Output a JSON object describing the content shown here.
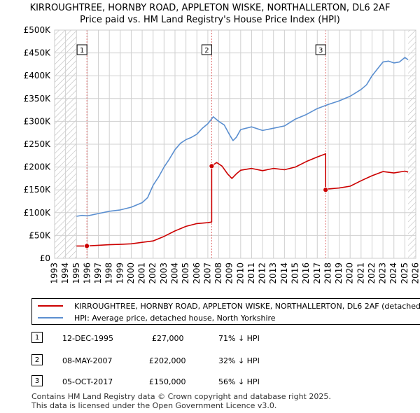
{
  "colors": {
    "red": "#cc0000",
    "blue": "#5b8fd0",
    "grid": "#d0d0d0",
    "hatch": "#bbbbbb",
    "vline": "#e07070"
  },
  "chart_data": {
    "type": "line",
    "title": "KIRROUGHTREE, HORNBY ROAD, APPLETON WISKE, NORTHALLERTON, DL6 2AF",
    "subtitle": "Price paid vs. HM Land Registry's House Price Index (HPI)",
    "xlim": [
      1993,
      2026
    ],
    "ylim": [
      0,
      500000
    ],
    "yticks": [
      0,
      50000,
      100000,
      150000,
      200000,
      250000,
      300000,
      350000,
      400000,
      450000,
      500000
    ],
    "ytick_labels": [
      "£0",
      "£50K",
      "£100K",
      "£150K",
      "£200K",
      "£250K",
      "£300K",
      "£350K",
      "£400K",
      "£450K",
      "£500K"
    ],
    "xtick_labels": [
      "1993",
      "1994",
      "1995",
      "1996",
      "1997",
      "1998",
      "1999",
      "2000",
      "2001",
      "2002",
      "2003",
      "2004",
      "2005",
      "2006",
      "2007",
      "2008",
      "2009",
      "2010",
      "2011",
      "2012",
      "2013",
      "2014",
      "2015",
      "2016",
      "2017",
      "2018",
      "2019",
      "2020",
      "2021",
      "2022",
      "2023",
      "2024",
      "2025",
      "2026"
    ],
    "hatched_ranges": [
      [
        1993,
        1995
      ],
      [
        2025.3,
        2026
      ]
    ],
    "series": [
      {
        "name": "KIRROUGHTREE, HORNBY ROAD, APPLETON WISKE, NORTHALLERTON, DL6 2AF (detached house)",
        "color": "#cc0000",
        "x": [
          1995.0,
          1995.95,
          1997,
          1998,
          1999,
          2000,
          2001,
          2002,
          2003,
          2004,
          2005,
          2006,
          2007.0,
          2007.35,
          2007.35,
          2007.8,
          2008.3,
          2008.8,
          2009.2,
          2009.6,
          2010,
          2011,
          2012,
          2013,
          2014,
          2015,
          2016,
          2017,
          2017.76,
          2017.76,
          2018,
          2019,
          2020,
          2021,
          2022,
          2023,
          2024,
          2025,
          2025.3
        ],
        "values": [
          27000,
          27000,
          28500,
          29800,
          30500,
          31800,
          35000,
          38000,
          48000,
          60000,
          70000,
          76000,
          78000,
          79500,
          202000,
          210000,
          202000,
          185000,
          175000,
          185000,
          193000,
          197000,
          192000,
          197000,
          194000,
          200000,
          212000,
          222000,
          229000,
          150000,
          152000,
          154000,
          158000,
          170000,
          181000,
          190000,
          187000,
          191000,
          189000
        ]
      },
      {
        "name": "HPI: Average price, detached house, North Yorkshire",
        "color": "#5b8fd0",
        "x": [
          1995.0,
          1995.5,
          1996,
          1997,
          1998,
          1999,
          2000,
          2001,
          2001.5,
          2002,
          2002.5,
          2003,
          2003.5,
          2004,
          2004.5,
          2005,
          2005.5,
          2006,
          2006.5,
          2007,
          2007.5,
          2008,
          2008.5,
          2009,
          2009.3,
          2009.6,
          2010,
          2011,
          2012,
          2013,
          2014,
          2015,
          2016,
          2017,
          2018,
          2019,
          2020,
          2021,
          2021.5,
          2022,
          2022.5,
          2023,
          2023.5,
          2024,
          2024.5,
          2025,
          2025.3
        ],
        "values": [
          92000,
          94000,
          93000,
          98000,
          103000,
          106000,
          112000,
          122000,
          133000,
          160000,
          178000,
          200000,
          218000,
          238000,
          252000,
          260000,
          265000,
          272000,
          285000,
          295000,
          310000,
          300000,
          292000,
          270000,
          258000,
          265000,
          282000,
          288000,
          280000,
          285000,
          290000,
          305000,
          315000,
          328000,
          337000,
          345000,
          355000,
          370000,
          380000,
          400000,
          415000,
          430000,
          432000,
          428000,
          430000,
          440000,
          435000
        ]
      }
    ],
    "sales": [
      {
        "id": "1",
        "x": 1995.95,
        "value": 27000
      },
      {
        "id": "2",
        "x": 2007.35,
        "value": 202000
      },
      {
        "id": "3",
        "x": 2017.76,
        "value": 150000
      }
    ]
  },
  "legend": {
    "red_label": "KIRROUGHTREE, HORNBY ROAD, APPLETON WISKE, NORTHALLERTON, DL6 2AF (detached house)",
    "blue_label": "HPI: Average price, detached house, North Yorkshire"
  },
  "sales_table": [
    {
      "num": "1",
      "date": "12-DEC-1995",
      "price": "£27,000",
      "hpi": "71% ↓ HPI"
    },
    {
      "num": "2",
      "date": "08-MAY-2007",
      "price": "£202,000",
      "hpi": "32% ↓ HPI"
    },
    {
      "num": "3",
      "date": "05-OCT-2017",
      "price": "£150,000",
      "hpi": "56% ↓ HPI"
    }
  ],
  "footer": {
    "line1": "Contains HM Land Registry data © Crown copyright and database right 2025.",
    "line2": "This data is licensed under the Open Government Licence v3.0."
  }
}
